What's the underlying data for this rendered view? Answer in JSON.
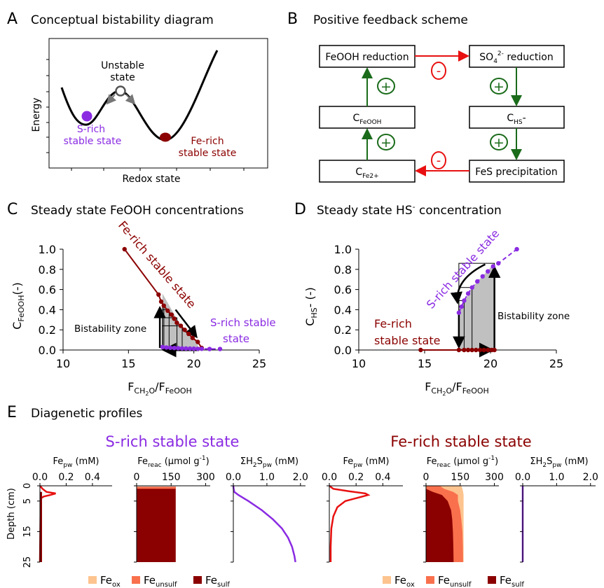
{
  "colors": {
    "fe_rich": "#8b0000",
    "s_rich": "#8a2be2",
    "positive": "#1a6b1a",
    "negative": "#e81010",
    "fe_ox": "#fdc48f",
    "fe_unsulf": "#f9704d",
    "fe_sulf": "#8b0000",
    "zone": "#c0c0c0"
  },
  "panelA": {
    "letter": "A",
    "title": "Conceptual bistability diagram",
    "ylabel": "Energy",
    "xlabel": "Redox state",
    "unstable_label": [
      "Unstable",
      "state"
    ],
    "s_label": [
      "S-rich",
      "stable state"
    ],
    "fe_label": [
      "Fe-rich",
      "stable state"
    ]
  },
  "panelB": {
    "letter": "B",
    "title": "Positive feedback scheme",
    "boxes": {
      "feooh_red": "FeOOH reduction",
      "so4_base": "SO",
      "so4_sub": "4",
      "so4_sup": "2-",
      "so4_tail": " reduction",
      "c_feooh_base": "C",
      "c_feooh_sub": "FeOOH",
      "c_hs_base": "C",
      "c_hs_sub": "HS",
      "c_hs_tail": "-",
      "c_fe2_base": "C",
      "c_fe2_sub": "Fe2+",
      "fes": "FeS precipitation"
    },
    "plus": "+",
    "minus": "-"
  },
  "panelC": {
    "letter": "C",
    "title": "Steady state FeOOH concentrations",
    "ylabel_base": "C",
    "ylabel_sub": "FeOOH",
    "ylabel_tail": "(-)",
    "xlabel_base": "F",
    "xlabel_sub1": "CH",
    "xlabel_sub1b": "2",
    "xlabel_sub1c": "O",
    "xlabel_mid": "/F",
    "xlabel_sub2": "FeOOH",
    "zone_label": "Bistability zone",
    "fe_label": "Fe-rich stable state",
    "s_label": [
      "S-rich stable",
      "state"
    ]
  },
  "panelD": {
    "letter": "D",
    "title_base": "Steady state HS",
    "title_sup": "-",
    "title_tail": " concentration",
    "ylabel_base": "C",
    "ylabel_sub": "HS",
    "ylabel_tail": "- (-)",
    "zone_label": "Bistability zone",
    "fe_label": [
      "Fe-rich",
      "stable state"
    ],
    "s_label": "S-rich stable state"
  },
  "panelE": {
    "letter": "E",
    "title": "Diagenetic profiles",
    "s_title": "S-rich stable state",
    "fe_title": "Fe-rich stable state",
    "depth_label": "Depth (cm)",
    "fepw_label": "Fe",
    "fepw_sub": "pw",
    "fepw_unit": " (mM)",
    "fereac_label": "Fe",
    "fereac_sub": "reac",
    "fereac_unit": " (µmol g",
    "fereac_sup": "-1",
    "fereac_close": ")",
    "h2s_label": "ΣH",
    "h2s_sub1": "2",
    "h2s_mid": "S",
    "h2s_sub2": "pw",
    "h2s_unit": " (mM)",
    "legend": [
      {
        "base": "Fe",
        "sub": "ox"
      },
      {
        "base": "Fe",
        "sub": "unsulf"
      },
      {
        "base": "Fe",
        "sub": "sulf"
      }
    ]
  },
  "chart_data": [
    {
      "type": "scatter",
      "panel": "C",
      "xlim": [
        10,
        25
      ],
      "ylim": [
        0,
        1.0
      ],
      "x_ticks": [
        10,
        15,
        20,
        25
      ],
      "y_ticks": [
        0.0,
        0.2,
        0.4,
        0.6,
        0.8,
        1.0
      ],
      "series": [
        {
          "color": "fe_rich",
          "x": [
            14.7,
            17.3,
            17.5,
            17.7,
            18.0,
            18.3,
            18.5,
            18.7,
            19.0,
            19.3,
            19.6,
            19.9,
            20.3,
            20.6
          ],
          "y": [
            1.0,
            0.55,
            0.48,
            0.44,
            0.39,
            0.35,
            0.31,
            0.27,
            0.24,
            0.2,
            0.16,
            0.12,
            0.08,
            0.02
          ]
        },
        {
          "color": "s_rich",
          "x": [
            17.6,
            17.9,
            18.2,
            18.5,
            18.8,
            19.1,
            19.4,
            19.7,
            20.0,
            20.3,
            20.6,
            21.2,
            22.0
          ],
          "y": [
            0.03,
            0.025,
            0.022,
            0.02,
            0.018,
            0.016,
            0.015,
            0.014,
            0.013,
            0.012,
            0.012,
            0.01,
            0.01
          ]
        }
      ]
    },
    {
      "type": "scatter",
      "panel": "D",
      "xlim": [
        10,
        25
      ],
      "ylim": [
        0,
        1.0
      ],
      "x_ticks": [
        10,
        15,
        20,
        25
      ],
      "y_ticks": [
        0.0,
        0.2,
        0.4,
        0.6,
        0.8,
        1.0
      ],
      "series": [
        {
          "color": "fe_rich",
          "x": [
            14.7,
            17.6,
            18.0,
            18.3,
            18.6,
            18.9,
            19.2,
            19.5,
            19.8,
            20.1,
            20.3
          ],
          "y": [
            0.0,
            0.0,
            0.0,
            0.0,
            0.0,
            0.0,
            0.0,
            0.0,
            0.0,
            0.0,
            0.0
          ]
        },
        {
          "color": "s_rich",
          "x": [
            17.6,
            17.8,
            18.0,
            18.3,
            18.6,
            19.0,
            19.4,
            19.8,
            20.2,
            20.6,
            22.0
          ],
          "y": [
            0.37,
            0.43,
            0.49,
            0.56,
            0.62,
            0.68,
            0.73,
            0.78,
            0.83,
            0.86,
            1.0
          ]
        }
      ]
    },
    {
      "type": "area",
      "panel": "E profiles",
      "depth_ticks": [
        0,
        5,
        15,
        25
      ],
      "axes": {
        "fepw": {
          "ticks": [
            0.0,
            0.2,
            0.4
          ],
          "max": 0.55
        },
        "fereac": {
          "ticks": [
            0,
            150,
            300
          ],
          "max": 320
        },
        "h2s": {
          "ticks": [
            0.0,
            1.0,
            2.0
          ],
          "max": 2.15
        }
      },
      "s_rich": {
        "fepw": {
          "depth": [
            0,
            1,
            2,
            2.5,
            3,
            3.5,
            4,
            6,
            25
          ],
          "value": [
            0.0,
            0.02,
            0.05,
            0.12,
            0.08,
            0.03,
            0.01,
            0.005,
            0.0
          ]
        },
        "fereac_total": 170,
        "h2s": {
          "depth": [
            0,
            1,
            2,
            3,
            5,
            8,
            11,
            14,
            17,
            20,
            23,
            25
          ],
          "value": [
            0.0,
            0.01,
            0.03,
            0.15,
            0.45,
            0.85,
            1.18,
            1.45,
            1.63,
            1.75,
            1.82,
            1.85
          ]
        }
      },
      "fe_rich": {
        "fepw": {
          "depth": [
            0,
            1,
            1.8,
            2.5,
            3,
            3.6,
            5,
            7,
            10,
            14,
            20,
            25
          ],
          "value": [
            0.0,
            0.03,
            0.15,
            0.27,
            0.29,
            0.24,
            0.12,
            0.06,
            0.03,
            0.015,
            0.01,
            0.01
          ]
        },
        "fereac": {
          "depth": [
            0,
            1,
            2,
            3,
            5,
            8,
            11,
            15,
            20,
            25
          ],
          "sulf": [
            0,
            0,
            30,
            70,
            95,
            110,
            115,
            118,
            120,
            121
          ],
          "unsulf": [
            60,
            80,
            90,
            70,
            45,
            40,
            40,
            42,
            42,
            42
          ],
          "total": [
            155,
            160,
            163,
            165,
            165,
            165,
            165,
            165,
            165,
            165
          ]
        },
        "h2s": {
          "depth": [
            0,
            25
          ],
          "value": [
            0.0,
            0.0
          ]
        }
      }
    }
  ]
}
